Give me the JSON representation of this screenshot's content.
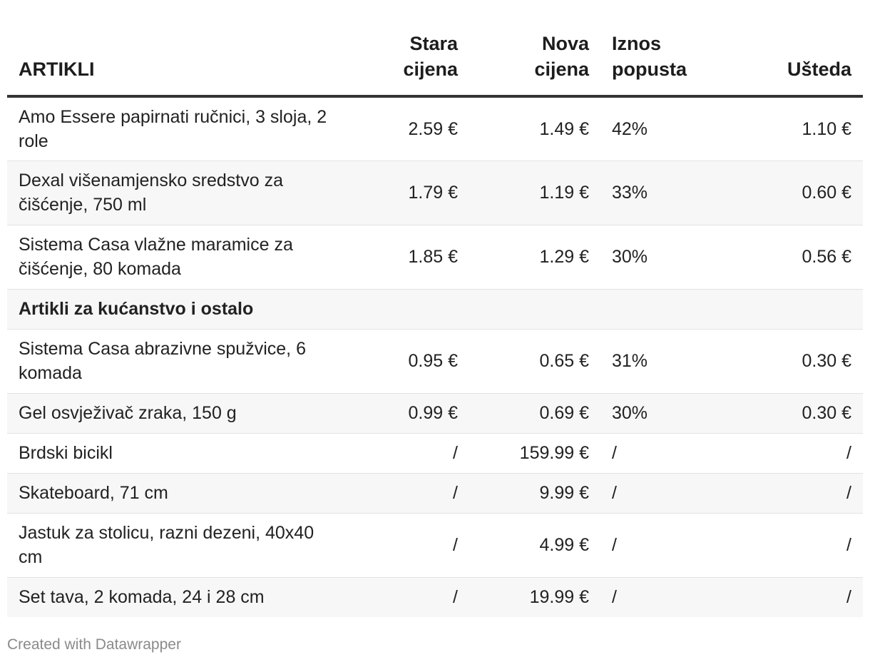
{
  "chart_data": {
    "type": "table",
    "columns": [
      "ARTIKLI",
      "Stara cijena",
      "Nova cijena",
      "Iznos popusta",
      "Ušteda"
    ],
    "rows": [
      {
        "kind": "item",
        "name": "Amo Essere papirnati ručnici, 3 sloja, 2 role",
        "old": "2.59 €",
        "new": "1.49 €",
        "pct": "42%",
        "save": "1.10 €"
      },
      {
        "kind": "item",
        "name": "Dexal višenamjensko sredstvo za čišćenje, 750 ml",
        "old": "1.79 €",
        "new": "1.19 €",
        "pct": "33%",
        "save": "0.60 €"
      },
      {
        "kind": "item",
        "name": "Sistema Casa vlažne maramice za čišćenje, 80 komada",
        "old": "1.85 €",
        "new": "1.29 €",
        "pct": "30%",
        "save": "0.56 €"
      },
      {
        "kind": "section",
        "name": "Artikli za kućanstvo i ostalo"
      },
      {
        "kind": "item",
        "name": "Sistema Casa abrazivne spužvice, 6 komada",
        "old": "0.95 €",
        "new": "0.65 €",
        "pct": "31%",
        "save": "0.30 €"
      },
      {
        "kind": "item",
        "name": "Gel osvježivač zraka, 150 g",
        "old": "0.99 €",
        "new": "0.69 €",
        "pct": "30%",
        "save": "0.30 €"
      },
      {
        "kind": "item",
        "name": "Brdski bicikl",
        "old": "/",
        "new": "159.99 €",
        "pct": "/",
        "save": "/"
      },
      {
        "kind": "item",
        "name": "Skateboard, 71 cm",
        "old": "/",
        "new": "9.99 €",
        "pct": "/",
        "save": "/"
      },
      {
        "kind": "item",
        "name": "Jastuk za stolicu, razni dezeni, 40x40 cm",
        "old": "/",
        "new": "4.99 €",
        "pct": "/",
        "save": "/"
      },
      {
        "kind": "item",
        "name": "Set tava, 2 komada, 24 i 28 cm",
        "old": "/",
        "new": "19.99 €",
        "pct": "/",
        "save": "/"
      }
    ]
  },
  "header": {
    "col_name": "ARTIKLI",
    "col_old_1": "Stara",
    "col_old_2": "cijena",
    "col_new_1": "Nova",
    "col_new_2": "cijena",
    "col_pct_1": "Iznos",
    "col_pct_2": "popusta",
    "col_save": "Ušteda"
  },
  "footer": {
    "credit": "Created with Datawrapper"
  },
  "colors": {
    "header_rule": "#333333",
    "row_alt_bg": "#f7f7f7",
    "row_divider": "#e2e2e2",
    "footer_text": "#8a8a8a"
  }
}
